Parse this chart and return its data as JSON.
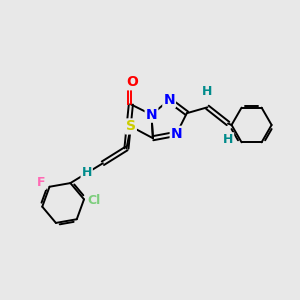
{
  "background_color": "#e8e8e8",
  "bond_color": "#000000",
  "atom_colors": {
    "O": "#ff0000",
    "N": "#0000ff",
    "S": "#cccc00",
    "F": "#ff69b4",
    "Cl": "#7ccd7c",
    "H": "#008b8b",
    "C": "#000000"
  },
  "figsize": [
    3.0,
    3.0
  ],
  "dpi": 100
}
